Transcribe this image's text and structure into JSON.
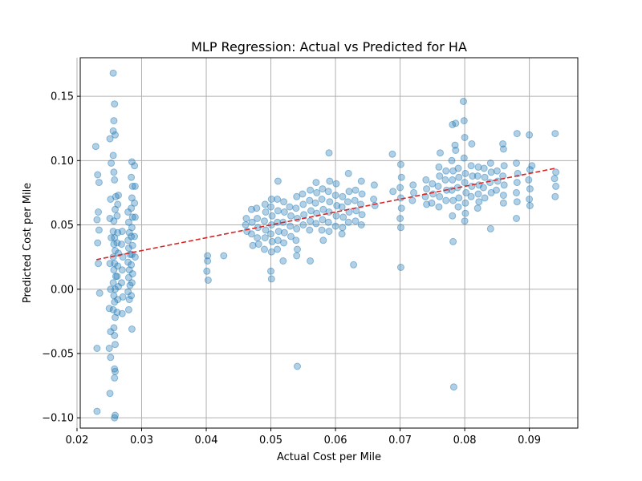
{
  "chart_data": {
    "type": "scatter",
    "title": "MLP Regression: Actual vs Predicted for HA",
    "xlabel": "Actual Cost per Mile",
    "ylabel": "Predicted Cost per Mile",
    "xlim": [
      0.0205,
      0.0975
    ],
    "ylim": [
      -0.108,
      0.18
    ],
    "x_ticks": [
      0.02,
      0.03,
      0.04,
      0.05,
      0.06,
      0.07,
      0.08,
      0.09
    ],
    "y_ticks": [
      -0.1,
      -0.05,
      0.0,
      0.05,
      0.1,
      0.15
    ],
    "x_tick_labels": [
      "0.02",
      "0.03",
      "0.04",
      "0.05",
      "0.06",
      "0.07",
      "0.08",
      "0.09"
    ],
    "y_tick_labels": [
      "−0.10",
      "−0.05",
      "0.00",
      "0.05",
      "0.10",
      "0.15"
    ],
    "grid": true,
    "colors": {
      "points": "#1f77b4",
      "fit_line": "#d62728",
      "grid": "#b0b0b0"
    },
    "fit_line": {
      "x": [
        0.023,
        0.094
      ],
      "y": [
        0.023,
        0.094
      ],
      "style": "dashed"
    },
    "points": [
      [
        0.0231,
        -0.095
      ],
      [
        0.0229,
        0.111
      ],
      [
        0.0232,
        0.089
      ],
      [
        0.0234,
        0.083
      ],
      [
        0.0233,
        0.06
      ],
      [
        0.0231,
        0.054
      ],
      [
        0.0234,
        0.046
      ],
      [
        0.0232,
        0.036
      ],
      [
        0.0233,
        0.02
      ],
      [
        0.0235,
        -0.003
      ],
      [
        0.0231,
        -0.046
      ],
      [
        0.0251,
        -0.081
      ],
      [
        0.0252,
        -0.053
      ],
      [
        0.025,
        -0.046
      ],
      [
        0.0252,
        -0.033
      ],
      [
        0.025,
        -0.015
      ],
      [
        0.0252,
        0.0
      ],
      [
        0.0251,
        0.02
      ],
      [
        0.0253,
        0.04
      ],
      [
        0.0251,
        0.055
      ],
      [
        0.0252,
        0.07
      ],
      [
        0.0253,
        0.098
      ],
      [
        0.0251,
        0.117
      ],
      [
        0.0256,
        0.168
      ],
      [
        0.0258,
        0.144
      ],
      [
        0.0257,
        0.131
      ],
      [
        0.0256,
        0.123
      ],
      [
        0.0259,
        0.12
      ],
      [
        0.0256,
        0.104
      ],
      [
        0.0257,
        0.091
      ],
      [
        0.0258,
        0.085
      ],
      [
        0.026,
        0.072
      ],
      [
        0.0259,
        0.062
      ],
      [
        0.0257,
        0.053
      ],
      [
        0.0256,
        0.045
      ],
      [
        0.0258,
        0.04
      ],
      [
        0.0257,
        0.035
      ],
      [
        0.0259,
        0.03
      ],
      [
        0.0256,
        0.025
      ],
      [
        0.0258,
        0.02
      ],
      [
        0.0257,
        0.015
      ],
      [
        0.026,
        0.01
      ],
      [
        0.0256,
        0.005
      ],
      [
        0.0259,
        0.0
      ],
      [
        0.0257,
        -0.005
      ],
      [
        0.0258,
        -0.01
      ],
      [
        0.0256,
        -0.016
      ],
      [
        0.0259,
        -0.022
      ],
      [
        0.0257,
        -0.03
      ],
      [
        0.0258,
        -0.036
      ],
      [
        0.0259,
        -0.043
      ],
      [
        0.0258,
        -0.062
      ],
      [
        0.0259,
        -0.064
      ],
      [
        0.0258,
        -0.069
      ],
      [
        0.0259,
        -0.098
      ],
      [
        0.0258,
        -0.1
      ],
      [
        0.0262,
        0.057
      ],
      [
        0.0263,
        0.044
      ],
      [
        0.0262,
        0.036
      ],
      [
        0.0264,
        0.028
      ],
      [
        0.0263,
        0.018
      ],
      [
        0.0262,
        0.01
      ],
      [
        0.0264,
        0.002
      ],
      [
        0.0263,
        -0.008
      ],
      [
        0.0262,
        -0.018
      ],
      [
        0.0264,
        0.073
      ],
      [
        0.0263,
        0.066
      ],
      [
        0.027,
        0.045
      ],
      [
        0.0269,
        0.035
      ],
      [
        0.0271,
        0.025
      ],
      [
        0.027,
        0.015
      ],
      [
        0.0269,
        0.005
      ],
      [
        0.0271,
        -0.006
      ],
      [
        0.027,
        -0.019
      ],
      [
        0.0279,
        0.06
      ],
      [
        0.028,
        0.052
      ],
      [
        0.0281,
        0.044
      ],
      [
        0.0279,
        0.038
      ],
      [
        0.028,
        0.032
      ],
      [
        0.0282,
        0.027
      ],
      [
        0.0279,
        0.021
      ],
      [
        0.0281,
        0.015
      ],
      [
        0.028,
        0.009
      ],
      [
        0.0282,
        0.003
      ],
      [
        0.0279,
        -0.002
      ],
      [
        0.0281,
        -0.008
      ],
      [
        0.028,
        -0.016
      ],
      [
        0.0285,
        0.099
      ],
      [
        0.0284,
        0.087
      ],
      [
        0.0286,
        0.08
      ],
      [
        0.0285,
        0.071
      ],
      [
        0.0284,
        0.063
      ],
      [
        0.0286,
        0.056
      ],
      [
        0.0285,
        0.048
      ],
      [
        0.0284,
        0.041
      ],
      [
        0.0286,
        0.034
      ],
      [
        0.0285,
        0.027
      ],
      [
        0.0284,
        0.019
      ],
      [
        0.0286,
        0.012
      ],
      [
        0.0285,
        0.005
      ],
      [
        0.0284,
        -0.005
      ],
      [
        0.0285,
        -0.031
      ],
      [
        0.0289,
        0.096
      ],
      [
        0.029,
        0.08
      ],
      [
        0.0289,
        0.067
      ],
      [
        0.029,
        0.056
      ],
      [
        0.0289,
        0.041
      ],
      [
        0.029,
        0.025
      ],
      [
        0.0402,
        0.026
      ],
      [
        0.0402,
        0.022
      ],
      [
        0.0401,
        0.014
      ],
      [
        0.0403,
        0.007
      ],
      [
        0.0427,
        0.026
      ],
      [
        0.0462,
        0.055
      ],
      [
        0.0461,
        0.05
      ],
      [
        0.0463,
        0.045
      ],
      [
        0.047,
        0.062
      ],
      [
        0.0471,
        0.052
      ],
      [
        0.047,
        0.043
      ],
      [
        0.0472,
        0.034
      ],
      [
        0.0478,
        0.063
      ],
      [
        0.0479,
        0.055
      ],
      [
        0.048,
        0.048
      ],
      [
        0.0479,
        0.04
      ],
      [
        0.0481,
        0.035
      ],
      [
        0.0491,
        0.066
      ],
      [
        0.0492,
        0.06
      ],
      [
        0.049,
        0.053
      ],
      [
        0.0492,
        0.046
      ],
      [
        0.0491,
        0.04
      ],
      [
        0.049,
        0.031
      ],
      [
        0.0501,
        0.07
      ],
      [
        0.05,
        0.064
      ],
      [
        0.0502,
        0.057
      ],
      [
        0.0501,
        0.05
      ],
      [
        0.05,
        0.043
      ],
      [
        0.0502,
        0.037
      ],
      [
        0.0501,
        0.029
      ],
      [
        0.05,
        0.014
      ],
      [
        0.0501,
        0.008
      ],
      [
        0.0511,
        0.084
      ],
      [
        0.051,
        0.07
      ],
      [
        0.0511,
        0.061
      ],
      [
        0.051,
        0.052
      ],
      [
        0.0512,
        0.045
      ],
      [
        0.0511,
        0.038
      ],
      [
        0.051,
        0.031
      ],
      [
        0.052,
        0.068
      ],
      [
        0.0521,
        0.06
      ],
      [
        0.0519,
        0.052
      ],
      [
        0.0521,
        0.044
      ],
      [
        0.052,
        0.036
      ],
      [
        0.0519,
        0.022
      ],
      [
        0.0529,
        0.064
      ],
      [
        0.0531,
        0.057
      ],
      [
        0.053,
        0.049
      ],
      [
        0.0531,
        0.041
      ],
      [
        0.054,
        0.072
      ],
      [
        0.0539,
        0.063
      ],
      [
        0.0541,
        0.055
      ],
      [
        0.054,
        0.047
      ],
      [
        0.0539,
        0.038
      ],
      [
        0.0541,
        0.031
      ],
      [
        0.054,
        0.026
      ],
      [
        0.0541,
        -0.06
      ],
      [
        0.0549,
        0.074
      ],
      [
        0.055,
        0.066
      ],
      [
        0.0551,
        0.058
      ],
      [
        0.055,
        0.05
      ],
      [
        0.0561,
        0.077
      ],
      [
        0.056,
        0.069
      ],
      [
        0.0562,
        0.061
      ],
      [
        0.0561,
        0.053
      ],
      [
        0.056,
        0.046
      ],
      [
        0.0561,
        0.022
      ],
      [
        0.057,
        0.083
      ],
      [
        0.0571,
        0.075
      ],
      [
        0.0569,
        0.067
      ],
      [
        0.0571,
        0.059
      ],
      [
        0.057,
        0.051
      ],
      [
        0.058,
        0.078
      ],
      [
        0.0579,
        0.07
      ],
      [
        0.0581,
        0.062
      ],
      [
        0.058,
        0.054
      ],
      [
        0.0579,
        0.046
      ],
      [
        0.0581,
        0.038
      ],
      [
        0.059,
        0.106
      ],
      [
        0.0591,
        0.084
      ],
      [
        0.0589,
        0.076
      ],
      [
        0.0591,
        0.068
      ],
      [
        0.059,
        0.06
      ],
      [
        0.0589,
        0.052
      ],
      [
        0.059,
        0.045
      ],
      [
        0.0601,
        0.082
      ],
      [
        0.06,
        0.073
      ],
      [
        0.0602,
        0.065
      ],
      [
        0.0601,
        0.057
      ],
      [
        0.06,
        0.049
      ],
      [
        0.0611,
        0.072
      ],
      [
        0.061,
        0.064
      ],
      [
        0.0612,
        0.056
      ],
      [
        0.0611,
        0.048
      ],
      [
        0.061,
        0.043
      ],
      [
        0.062,
        0.09
      ],
      [
        0.0621,
        0.076
      ],
      [
        0.0619,
        0.068
      ],
      [
        0.0621,
        0.06
      ],
      [
        0.062,
        0.052
      ],
      [
        0.0628,
        0.019
      ],
      [
        0.0631,
        0.077
      ],
      [
        0.063,
        0.069
      ],
      [
        0.0632,
        0.061
      ],
      [
        0.0631,
        0.053
      ],
      [
        0.064,
        0.084
      ],
      [
        0.0641,
        0.074
      ],
      [
        0.0639,
        0.066
      ],
      [
        0.0641,
        0.058
      ],
      [
        0.064,
        0.05
      ],
      [
        0.066,
        0.081
      ],
      [
        0.0659,
        0.07
      ],
      [
        0.0661,
        0.065
      ],
      [
        0.0688,
        0.105
      ],
      [
        0.0689,
        0.076
      ],
      [
        0.0701,
        0.097
      ],
      [
        0.0702,
        0.087
      ],
      [
        0.07,
        0.079
      ],
      [
        0.0701,
        0.071
      ],
      [
        0.0702,
        0.063
      ],
      [
        0.07,
        0.055
      ],
      [
        0.0701,
        0.048
      ],
      [
        0.0701,
        0.017
      ],
      [
        0.072,
        0.081
      ],
      [
        0.0721,
        0.075
      ],
      [
        0.0719,
        0.069
      ],
      [
        0.074,
        0.085
      ],
      [
        0.0741,
        0.078
      ],
      [
        0.0739,
        0.072
      ],
      [
        0.0741,
        0.066
      ],
      [
        0.075,
        0.082
      ],
      [
        0.0751,
        0.074
      ],
      [
        0.0749,
        0.067
      ],
      [
        0.076,
        0.095
      ],
      [
        0.0761,
        0.088
      ],
      [
        0.0759,
        0.08
      ],
      [
        0.0761,
        0.072
      ],
      [
        0.076,
        0.064
      ],
      [
        0.0762,
        0.106
      ],
      [
        0.0771,
        0.092
      ],
      [
        0.077,
        0.085
      ],
      [
        0.0772,
        0.077
      ],
      [
        0.0771,
        0.069
      ],
      [
        0.0781,
        0.128
      ],
      [
        0.078,
        0.1
      ],
      [
        0.0782,
        0.092
      ],
      [
        0.0781,
        0.085
      ],
      [
        0.078,
        0.077
      ],
      [
        0.0782,
        0.069
      ],
      [
        0.0781,
        0.057
      ],
      [
        0.0782,
        0.037
      ],
      [
        0.0783,
        -0.076
      ],
      [
        0.0786,
        0.129
      ],
      [
        0.0785,
        0.112
      ],
      [
        0.0786,
        0.108
      ],
      [
        0.079,
        0.094
      ],
      [
        0.0791,
        0.087
      ],
      [
        0.0789,
        0.079
      ],
      [
        0.0791,
        0.071
      ],
      [
        0.079,
        0.064
      ],
      [
        0.0798,
        0.146
      ],
      [
        0.0799,
        0.131
      ],
      [
        0.08,
        0.118
      ],
      [
        0.0799,
        0.102
      ],
      [
        0.0801,
        0.09
      ],
      [
        0.08,
        0.083
      ],
      [
        0.0802,
        0.075
      ],
      [
        0.0801,
        0.067
      ],
      [
        0.08,
        0.053
      ],
      [
        0.0801,
        0.059
      ],
      [
        0.0811,
        0.113
      ],
      [
        0.081,
        0.096
      ],
      [
        0.0812,
        0.088
      ],
      [
        0.0811,
        0.08
      ],
      [
        0.081,
        0.072
      ],
      [
        0.0821,
        0.095
      ],
      [
        0.082,
        0.088
      ],
      [
        0.0822,
        0.081
      ],
      [
        0.0821,
        0.074
      ],
      [
        0.082,
        0.063
      ],
      [
        0.0822,
        0.068
      ],
      [
        0.083,
        0.094
      ],
      [
        0.0831,
        0.087
      ],
      [
        0.0829,
        0.079
      ],
      [
        0.0831,
        0.071
      ],
      [
        0.084,
        0.098
      ],
      [
        0.0841,
        0.091
      ],
      [
        0.0839,
        0.083
      ],
      [
        0.0841,
        0.075
      ],
      [
        0.084,
        0.047
      ],
      [
        0.085,
        0.092
      ],
      [
        0.0851,
        0.084
      ],
      [
        0.0849,
        0.077
      ],
      [
        0.0859,
        0.113
      ],
      [
        0.086,
        0.109
      ],
      [
        0.0861,
        0.096
      ],
      [
        0.0859,
        0.088
      ],
      [
        0.0861,
        0.081
      ],
      [
        0.086,
        0.073
      ],
      [
        0.086,
        0.067
      ],
      [
        0.0881,
        0.121
      ],
      [
        0.088,
        0.098
      ],
      [
        0.0882,
        0.09
      ],
      [
        0.0881,
        0.083
      ],
      [
        0.088,
        0.075
      ],
      [
        0.0881,
        0.068
      ],
      [
        0.088,
        0.055
      ],
      [
        0.09,
        0.12
      ],
      [
        0.0901,
        0.093
      ],
      [
        0.0899,
        0.085
      ],
      [
        0.0901,
        0.078
      ],
      [
        0.09,
        0.07
      ],
      [
        0.0901,
        0.065
      ],
      [
        0.0904,
        0.096
      ],
      [
        0.094,
        0.121
      ],
      [
        0.0941,
        0.091
      ],
      [
        0.0939,
        0.086
      ],
      [
        0.0941,
        0.08
      ],
      [
        0.094,
        0.072
      ]
    ]
  }
}
